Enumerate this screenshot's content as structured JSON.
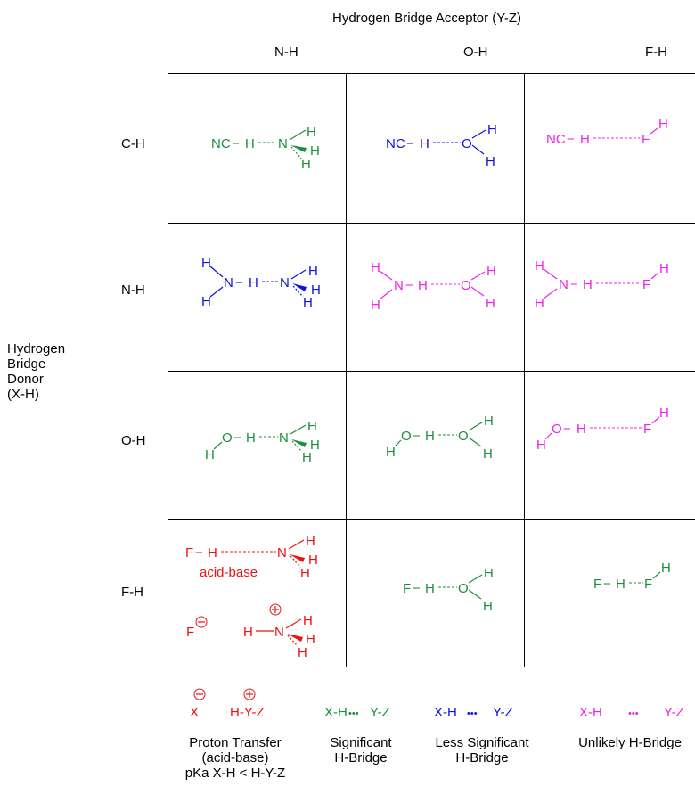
{
  "header": {
    "acceptor_title": "Hydrogen Bridge Acceptor (Y-Z)",
    "columns": [
      "N-H",
      "O-H",
      "F-H"
    ]
  },
  "donor_title": [
    "Hydrogen",
    "Bridge",
    "Donor",
    "(X-H)"
  ],
  "rows": [
    "C-H",
    "N-H",
    "O-H",
    "F-H"
  ],
  "colors": {
    "green": "#1a8f3c",
    "blue": "#1010e0",
    "magenta": "#ee22ee",
    "red": "#ee1111"
  },
  "atoms": {
    "NC": "NC",
    "H": "H",
    "N": "N",
    "O": "O",
    "F": "F",
    "dash": "−"
  },
  "cells": {
    "r1c1": {
      "donor": "NC",
      "acceptor": "N",
      "category": "significant"
    },
    "r1c2": {
      "donor": "NC",
      "acceptor": "O",
      "category": "less-significant"
    },
    "r1c3": {
      "donor": "NC",
      "acceptor": "F",
      "category": "unlikely"
    },
    "r2c1": {
      "donor": "NH2",
      "acceptor": "N",
      "category": "less-significant"
    },
    "r2c2": {
      "donor": "NH2",
      "acceptor": "O",
      "category": "unlikely"
    },
    "r2c3": {
      "donor": "NH2",
      "acceptor": "F",
      "category": "unlikely"
    },
    "r3c1": {
      "donor": "OH",
      "acceptor": "N",
      "category": "significant"
    },
    "r3c2": {
      "donor": "OH",
      "acceptor": "O",
      "category": "significant"
    },
    "r3c3": {
      "donor": "OH",
      "acceptor": "F",
      "category": "unlikely"
    },
    "r4c1": {
      "donor": "F",
      "acceptor": "N",
      "category": "proton-transfer",
      "note": "acid-base"
    },
    "r4c2": {
      "donor": "F",
      "acceptor": "O",
      "category": "significant"
    },
    "r4c3": {
      "donor": "F",
      "acceptor": "F",
      "category": "significant"
    }
  },
  "legend": {
    "proton_transfer": {
      "x": "X",
      "hyz": "H-Y-Z",
      "minus": "−",
      "plus": "+",
      "label": [
        "Proton Transfer",
        "(acid-base)",
        "pKa X-H < H-Y-Z"
      ]
    },
    "significant": {
      "left": "X-H",
      "dots": "•••",
      "right": "Y-Z",
      "label": [
        "Significant",
        "H-Bridge"
      ]
    },
    "less_significant": {
      "left": "X-H",
      "dots": "•••",
      "right": "Y-Z",
      "label": [
        "Less Significant",
        "H-Bridge"
      ]
    },
    "unlikely": {
      "left": "X-H",
      "dots": "•••",
      "right": "Y-Z",
      "label": [
        "Unlikely H-Bridge"
      ]
    }
  }
}
